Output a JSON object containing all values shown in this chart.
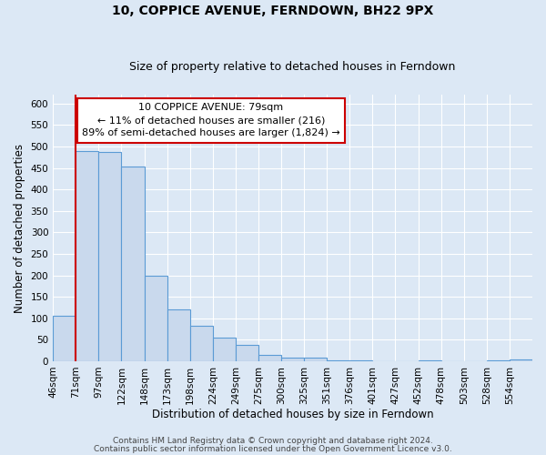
{
  "title": "10, COPPICE AVENUE, FERNDOWN, BH22 9PX",
  "subtitle": "Size of property relative to detached houses in Ferndown",
  "xlabel": "Distribution of detached houses by size in Ferndown",
  "ylabel": "Number of detached properties",
  "bin_labels": [
    "46sqm",
    "71sqm",
    "97sqm",
    "122sqm",
    "148sqm",
    "173sqm",
    "198sqm",
    "224sqm",
    "249sqm",
    "275sqm",
    "300sqm",
    "325sqm",
    "351sqm",
    "376sqm",
    "401sqm",
    "427sqm",
    "452sqm",
    "478sqm",
    "503sqm",
    "528sqm",
    "554sqm"
  ],
  "bar_heights": [
    105,
    490,
    488,
    453,
    200,
    120,
    83,
    55,
    38,
    15,
    9,
    9,
    3,
    3,
    0,
    0,
    3,
    0,
    0,
    3,
    5
  ],
  "bar_color": "#c9d9ed",
  "bar_edge_color": "#5b9bd5",
  "vline_x_index": 1,
  "vline_color": "#cc0000",
  "ylim": [
    0,
    620
  ],
  "yticks": [
    0,
    50,
    100,
    150,
    200,
    250,
    300,
    350,
    400,
    450,
    500,
    550,
    600
  ],
  "annotation_title": "10 COPPICE AVENUE: 79sqm",
  "annotation_line1": "← 11% of detached houses are smaller (216)",
  "annotation_line2": "89% of semi-detached houses are larger (1,824) →",
  "annotation_box_color": "#ffffff",
  "annotation_box_edge": "#cc0000",
  "footer1": "Contains HM Land Registry data © Crown copyright and database right 2024.",
  "footer2": "Contains public sector information licensed under the Open Government Licence v3.0.",
  "background_color": "#dce8f5",
  "plot_bg_color": "#dce8f5",
  "grid_color": "#ffffff",
  "title_fontsize": 10,
  "subtitle_fontsize": 9,
  "axis_label_fontsize": 8.5,
  "tick_fontsize": 7.5,
  "annotation_fontsize": 8,
  "footer_fontsize": 6.5
}
